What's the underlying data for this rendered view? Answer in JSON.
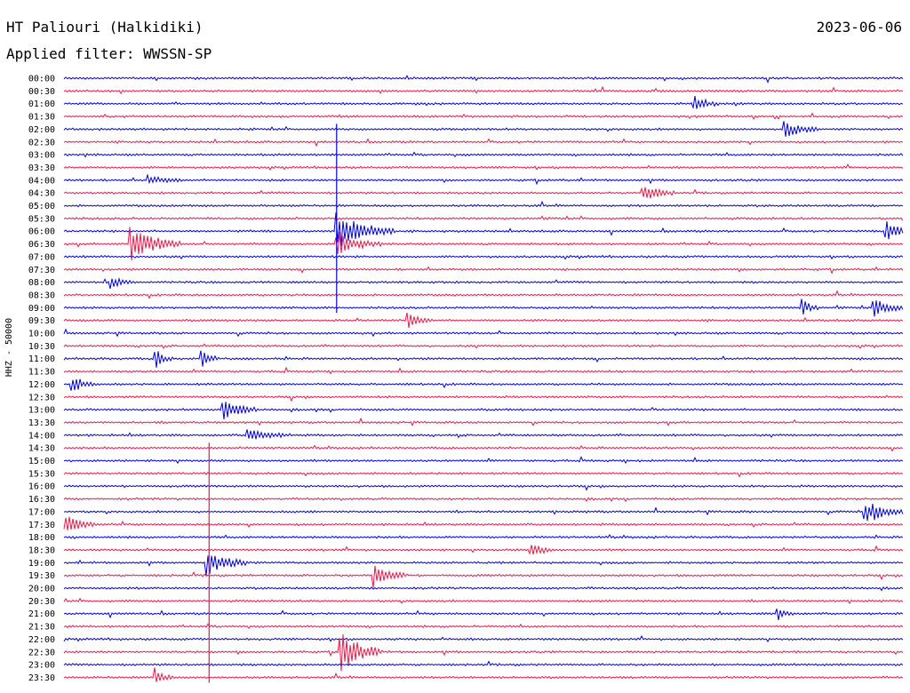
{
  "header": {
    "station": "HT Paliouri (Halkidiki)",
    "date": "2023-06-06",
    "filter_prefix": "Applied filter:",
    "filter_name": "WWSSN-SP"
  },
  "axis": {
    "side_label": "HHZ - 50000"
  },
  "colors": {
    "trace_a": "#0000e6",
    "trace_b": "#f0184a",
    "text": "#000000"
  },
  "chart_data": {
    "type": "line",
    "title": "HT Paliouri (Halkidiki)",
    "subtitle": "Applied filter: WWSSN-SP",
    "ylabel": "HHZ - 50000",
    "line_minutes": 30,
    "series_colors_alternate": [
      "blue",
      "red"
    ],
    "tick_labels": [
      "00:00",
      "00:30",
      "01:00",
      "01:30",
      "02:00",
      "02:30",
      "03:00",
      "03:30",
      "04:00",
      "04:30",
      "05:00",
      "05:30",
      "06:00",
      "06:30",
      "07:00",
      "07:30",
      "08:00",
      "08:30",
      "09:00",
      "09:30",
      "10:00",
      "10:30",
      "11:00",
      "11:30",
      "12:00",
      "12:30",
      "13:00",
      "13:30",
      "14:00",
      "14:30",
      "15:00",
      "15:30",
      "16:00",
      "16:30",
      "17:00",
      "17:30",
      "18:00",
      "18:30",
      "19:00",
      "19:30",
      "20:00",
      "20:30",
      "21:00",
      "21:30",
      "22:00",
      "22:30",
      "23:00",
      "23:30"
    ],
    "events": [
      {
        "line": 2,
        "x": 0.75,
        "amp": 10,
        "dur": 0.03
      },
      {
        "line": 4,
        "x": 0.86,
        "amp": 9,
        "dur": 0.04
      },
      {
        "line": 8,
        "x": 0.1,
        "amp": 5,
        "dur": 0.04
      },
      {
        "line": 9,
        "x": 0.69,
        "amp": 9,
        "dur": 0.04
      },
      {
        "line": 12,
        "x": 0.325,
        "amp": 22,
        "dur": 0.07
      },
      {
        "line": 12,
        "x": 0.98,
        "amp": 12,
        "dur": 0.03
      },
      {
        "line": 13,
        "x": 0.08,
        "amp": 20,
        "dur": 0.06
      },
      {
        "line": 13,
        "x": 0.325,
        "amp": 14,
        "dur": 0.05
      },
      {
        "line": 16,
        "x": 0.055,
        "amp": 7,
        "dur": 0.03
      },
      {
        "line": 18,
        "x": 0.88,
        "amp": 10,
        "dur": 0.02
      },
      {
        "line": 18,
        "x": 0.965,
        "amp": 12,
        "dur": 0.04
      },
      {
        "line": 19,
        "x": 0.41,
        "amp": 8,
        "dur": 0.03
      },
      {
        "line": 22,
        "x": 0.11,
        "amp": 10,
        "dur": 0.02
      },
      {
        "line": 22,
        "x": 0.165,
        "amp": 9,
        "dur": 0.02
      },
      {
        "line": 24,
        "x": 0.01,
        "amp": 9,
        "dur": 0.03
      },
      {
        "line": 26,
        "x": 0.19,
        "amp": 12,
        "dur": 0.04
      },
      {
        "line": 28,
        "x": 0.22,
        "amp": 7,
        "dur": 0.05
      },
      {
        "line": 34,
        "x": 0.955,
        "amp": 14,
        "dur": 0.05
      },
      {
        "line": 35,
        "x": 0.0,
        "amp": 11,
        "dur": 0.04
      },
      {
        "line": 37,
        "x": 0.555,
        "amp": 8,
        "dur": 0.03
      },
      {
        "line": 38,
        "x": 0.17,
        "amp": 14,
        "dur": 0.05
      },
      {
        "line": 39,
        "x": 0.37,
        "amp": 14,
        "dur": 0.04
      },
      {
        "line": 42,
        "x": 0.85,
        "amp": 8,
        "dur": 0.02
      },
      {
        "line": 45,
        "x": 0.33,
        "amp": 24,
        "dur": 0.05
      },
      {
        "line": 47,
        "x": 0.11,
        "amp": 9,
        "dur": 0.02
      }
    ],
    "spikes": [
      {
        "from_line": 4,
        "to_line": 18,
        "x": 0.325
      },
      {
        "from_line": 29,
        "to_line": 47,
        "x": 0.173
      }
    ]
  }
}
